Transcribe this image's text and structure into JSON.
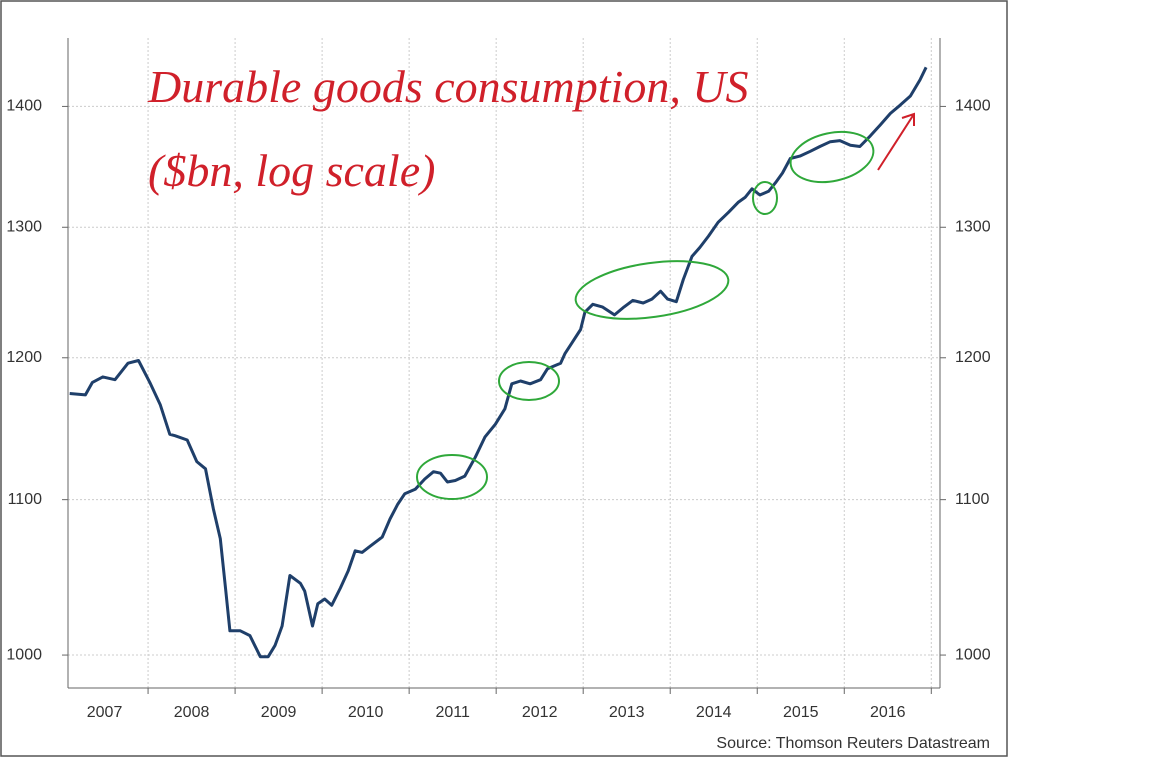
{
  "chart_data": {
    "type": "line",
    "title": "Durable goods consumption, US",
    "subtitle": "($bn, log scale)",
    "source": "Source: Thomson Reuters Datastream",
    "log_y": true,
    "grid": true,
    "color": "#1f3f6a",
    "xlim": [
      2007.08,
      2017.1
    ],
    "xticks": [
      2008,
      2009,
      2010,
      2011,
      2012,
      2013,
      2014,
      2015,
      2016,
      2017
    ],
    "xtick_labels": [
      {
        "value": 2007.5,
        "label": "2007"
      },
      {
        "value": 2008.5,
        "label": "2008"
      },
      {
        "value": 2009.5,
        "label": "2009"
      },
      {
        "value": 2010.5,
        "label": "2010"
      },
      {
        "value": 2011.5,
        "label": "2011"
      },
      {
        "value": 2012.5,
        "label": "2012"
      },
      {
        "value": 2013.5,
        "label": "2013"
      },
      {
        "value": 2014.5,
        "label": "2014"
      },
      {
        "value": 2015.5,
        "label": "2015"
      },
      {
        "value": 2016.5,
        "label": "2016"
      }
    ],
    "ylim": [
      980,
      1460
    ],
    "yticks": [
      1000,
      1100,
      1200,
      1300,
      1400
    ],
    "x": [
      2007.1,
      2007.28,
      2007.36,
      2007.48,
      2007.62,
      2007.77,
      2007.89,
      2008.02,
      2008.14,
      2008.25,
      2008.31,
      2008.45,
      2008.56,
      2008.66,
      2008.75,
      2008.83,
      2008.89,
      2008.94,
      2009.06,
      2009.17,
      2009.29,
      2009.38,
      2009.46,
      2009.54,
      2009.63,
      2009.75,
      2009.8,
      2009.89,
      2009.95,
      2010.03,
      2010.11,
      2010.21,
      2010.3,
      2010.38,
      2010.46,
      2010.55,
      2010.69,
      2010.78,
      2010.87,
      2010.95,
      2011.07,
      2011.18,
      2011.28,
      2011.36,
      2011.44,
      2011.53,
      2011.64,
      2011.76,
      2011.87,
      2011.99,
      2012.1,
      2012.18,
      2012.28,
      2012.39,
      2012.51,
      2012.59,
      2012.74,
      2012.79,
      2012.87,
      2012.97,
      2013.02,
      2013.11,
      2013.22,
      2013.36,
      2013.47,
      2013.57,
      2013.69,
      2013.79,
      2013.89,
      2013.97,
      2014.07,
      2014.15,
      2014.25,
      2014.34,
      2014.44,
      2014.55,
      2014.67,
      2014.78,
      2014.86,
      2014.94,
      2015.03,
      2015.13,
      2015.21,
      2015.29,
      2015.38,
      2015.49,
      2015.61,
      2015.72,
      2015.84,
      2015.95,
      2016.07,
      2016.18,
      2016.3,
      2016.41,
      2016.53,
      2016.64,
      2016.76,
      2016.87,
      2016.94
    ],
    "values": [
      1174,
      1173,
      1182,
      1186,
      1184,
      1196,
      1198,
      1182,
      1166,
      1145,
      1144,
      1141,
      1126,
      1121,
      1094,
      1074,
      1042,
      1015,
      1015,
      1012,
      999,
      999,
      1006,
      1018,
      1050,
      1045,
      1040,
      1018,
      1032,
      1035,
      1031,
      1042,
      1053,
      1066,
      1065,
      1069,
      1075,
      1087,
      1097,
      1104,
      1107,
      1114,
      1119,
      1118,
      1112,
      1113,
      1116,
      1129,
      1143,
      1152,
      1163,
      1181,
      1183,
      1181,
      1184,
      1192,
      1196,
      1203,
      1211,
      1221,
      1234,
      1240,
      1238,
      1232,
      1238,
      1243,
      1241,
      1244,
      1250,
      1244,
      1242,
      1259,
      1277,
      1284,
      1293,
      1304,
      1312,
      1320,
      1324,
      1331,
      1326,
      1329,
      1336,
      1344,
      1356,
      1358,
      1362,
      1366,
      1370,
      1371,
      1367,
      1366,
      1375,
      1384,
      1394,
      1401,
      1409,
      1423,
      1434
    ]
  }
}
